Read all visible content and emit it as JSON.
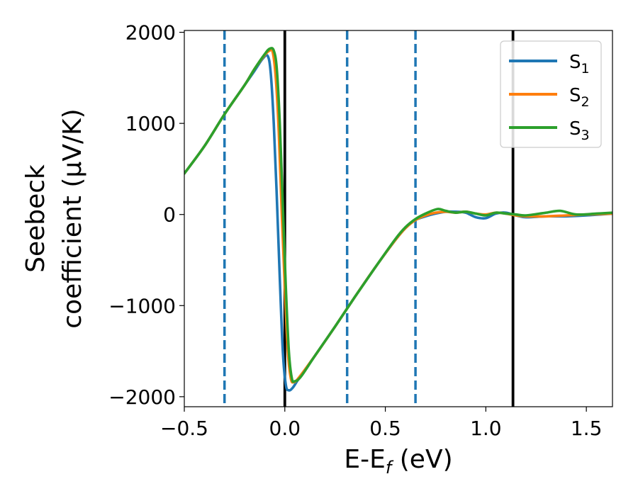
{
  "chart_data": {
    "type": "line",
    "title": "",
    "xlabel": "E-E_f (eV)",
    "ylabel_lines": [
      "Seebeck",
      "coefficient  (μV/K)"
    ],
    "xlim": [
      -0.5,
      1.63
    ],
    "ylim": [
      -2110,
      2020
    ],
    "x_ticks": [
      -0.5,
      0.0,
      0.5,
      1.0,
      1.5
    ],
    "x_tick_labels": [
      "−0.5",
      "0.0",
      "0.5",
      "1.0",
      "1.5"
    ],
    "y_ticks": [
      2000,
      1000,
      0,
      -1000,
      -2000
    ],
    "y_tick_labels": [
      "2000",
      "1000",
      "0",
      "−1000",
      "−2000"
    ],
    "grid": false,
    "legend_position": "top-right",
    "vertical_lines": [
      {
        "x": -0.3,
        "style": "dashed",
        "color": "#1f77b4"
      },
      {
        "x": 0.0,
        "style": "solid",
        "color": "#000000"
      },
      {
        "x": 0.31,
        "style": "dashed",
        "color": "#1f77b4"
      },
      {
        "x": 0.65,
        "style": "dashed",
        "color": "#1f77b4"
      },
      {
        "x": 1.135,
        "style": "solid",
        "color": "#000000"
      }
    ],
    "series": [
      {
        "name": "S1",
        "name_base": "S",
        "name_sub": "1",
        "color": "#1f77b4",
        "points": [
          [
            -0.5,
            450
          ],
          [
            -0.4,
            750
          ],
          [
            -0.3,
            1100
          ],
          [
            -0.2,
            1420
          ],
          [
            -0.15,
            1580
          ],
          [
            -0.11,
            1710
          ],
          [
            -0.085,
            1740
          ],
          [
            -0.07,
            1550
          ],
          [
            -0.055,
            1000
          ],
          [
            -0.04,
            200
          ],
          [
            -0.025,
            -700
          ],
          [
            -0.01,
            -1500
          ],
          [
            0.005,
            -1870
          ],
          [
            0.02,
            -1930
          ],
          [
            0.04,
            -1900
          ],
          [
            0.07,
            -1800
          ],
          [
            0.15,
            -1550
          ],
          [
            0.25,
            -1230
          ],
          [
            0.35,
            -900
          ],
          [
            0.45,
            -580
          ],
          [
            0.55,
            -280
          ],
          [
            0.6,
            -150
          ],
          [
            0.65,
            -60
          ],
          [
            0.7,
            -20
          ],
          [
            0.75,
            10
          ],
          [
            0.8,
            30
          ],
          [
            0.85,
            30
          ],
          [
            0.9,
            20
          ],
          [
            0.95,
            -30
          ],
          [
            1.0,
            -40
          ],
          [
            1.05,
            10
          ],
          [
            1.1,
            20
          ],
          [
            1.15,
            -10
          ],
          [
            1.2,
            -30
          ],
          [
            1.3,
            -20
          ],
          [
            1.4,
            -20
          ],
          [
            1.5,
            -10
          ],
          [
            1.63,
            10
          ]
        ]
      },
      {
        "name": "S2",
        "name_base": "S",
        "name_sub": "2",
        "color": "#ff7f0e",
        "points": [
          [
            -0.5,
            450
          ],
          [
            -0.4,
            750
          ],
          [
            -0.3,
            1100
          ],
          [
            -0.2,
            1420
          ],
          [
            -0.15,
            1600
          ],
          [
            -0.1,
            1750
          ],
          [
            -0.075,
            1800
          ],
          [
            -0.06,
            1780
          ],
          [
            -0.045,
            1500
          ],
          [
            -0.03,
            900
          ],
          [
            -0.015,
            0
          ],
          [
            0.0,
            -800
          ],
          [
            0.015,
            -1500
          ],
          [
            0.03,
            -1800
          ],
          [
            0.045,
            -1840
          ],
          [
            0.07,
            -1790
          ],
          [
            0.15,
            -1550
          ],
          [
            0.25,
            -1230
          ],
          [
            0.35,
            -900
          ],
          [
            0.45,
            -580
          ],
          [
            0.55,
            -280
          ],
          [
            0.6,
            -150
          ],
          [
            0.65,
            -60
          ],
          [
            0.7,
            -10
          ],
          [
            0.75,
            20
          ],
          [
            0.8,
            30
          ],
          [
            0.85,
            20
          ],
          [
            0.9,
            30
          ],
          [
            0.95,
            10
          ],
          [
            1.0,
            0
          ],
          [
            1.05,
            20
          ],
          [
            1.1,
            10
          ],
          [
            1.15,
            -10
          ],
          [
            1.2,
            -20
          ],
          [
            1.3,
            -20
          ],
          [
            1.4,
            -10
          ],
          [
            1.5,
            0
          ],
          [
            1.63,
            10
          ]
        ]
      },
      {
        "name": "S3",
        "name_base": "S",
        "name_sub": "3",
        "color": "#2ca02c",
        "points": [
          [
            -0.5,
            450
          ],
          [
            -0.4,
            750
          ],
          [
            -0.3,
            1100
          ],
          [
            -0.2,
            1420
          ],
          [
            -0.15,
            1600
          ],
          [
            -0.1,
            1760
          ],
          [
            -0.075,
            1820
          ],
          [
            -0.055,
            1800
          ],
          [
            -0.04,
            1600
          ],
          [
            -0.025,
            1000
          ],
          [
            -0.01,
            100
          ],
          [
            0.005,
            -800
          ],
          [
            0.02,
            -1500
          ],
          [
            0.035,
            -1800
          ],
          [
            0.05,
            -1830
          ],
          [
            0.08,
            -1780
          ],
          [
            0.15,
            -1550
          ],
          [
            0.25,
            -1230
          ],
          [
            0.35,
            -900
          ],
          [
            0.45,
            -580
          ],
          [
            0.55,
            -270
          ],
          [
            0.6,
            -140
          ],
          [
            0.65,
            -50
          ],
          [
            0.7,
            10
          ],
          [
            0.76,
            60
          ],
          [
            0.8,
            40
          ],
          [
            0.85,
            20
          ],
          [
            0.9,
            30
          ],
          [
            0.95,
            10
          ],
          [
            1.0,
            -10
          ],
          [
            1.05,
            20
          ],
          [
            1.1,
            10
          ],
          [
            1.15,
            0
          ],
          [
            1.2,
            -10
          ],
          [
            1.3,
            20
          ],
          [
            1.37,
            40
          ],
          [
            1.45,
            0
          ],
          [
            1.55,
            10
          ],
          [
            1.63,
            20
          ]
        ]
      }
    ]
  }
}
